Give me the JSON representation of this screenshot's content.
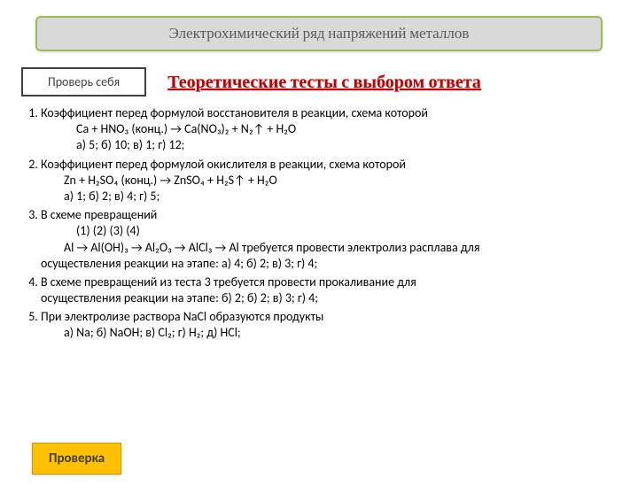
{
  "title": "Электрохимический ряд напряжений металлов",
  "checkSelf": "Проверь себя",
  "heading": "Теоретические тесты с выбором ответа",
  "q1": {
    "text": "Коэффициент перед формулой восстановителя в реакции, схема которой",
    "eq": "Ca + HNO₃ (конц.) → Ca(NO₃)₂ + N₂↑ + H₂O",
    "opts": "а) 5;   б) 10;   в) 1;   г) 12;"
  },
  "q2": {
    "text": "Коэффициент перед формулой окислителя в реакции, схема которой",
    "eq": "Zn + H₂SO₄ (конц.)  →  ZnSO₄ + H₂S↑ + H₂O",
    "opts": "а) 1;   б) 2;     в) 4;   г) 5;"
  },
  "q3": {
    "text": "В схеме превращений",
    "nums": "(1)           (2)          (3)           (4)",
    "eq": "Al → Al(OH)₃ → Al₂O₃ → AlCl₃ → Al требуется провести электролиз расплава для",
    "line2": "осуществления реакции на этапе:  а) 4;   б) 2;  в) 3;  г) 4;"
  },
  "q4": {
    "text": "В схеме превращений из теста 3 требуется провести прокаливание для",
    "line2": "осуществления реакции на этапе:  б) 2;  б) 2;  в) 3;  г) 4;"
  },
  "q5": {
    "text": "При электролизе раствора NaCl образуются продукты",
    "opts": "а) Na;  б) NaOH;   в) Cl₂;  г) H₂;  д) HCl;"
  },
  "checkBtn": "Проверка",
  "colors": {
    "bannerBorder": "#9bbb59",
    "bannerBg": "#d9d9d9",
    "headingColor": "#c00000",
    "btnBg": "#ffc000"
  }
}
